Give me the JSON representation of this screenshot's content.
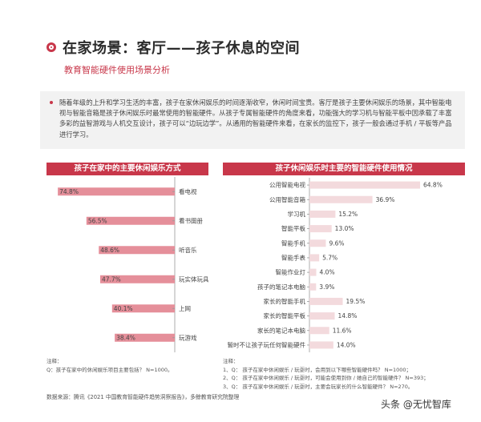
{
  "page": {
    "title": "在家场景：客厅——孩子休息的空间",
    "subtitle": "教育智能硬件使用场景分析",
    "intro": "随着年级的上升和学习生活的丰富，孩子在家休闲娱乐的时间逐渐收窄，休闲时间宝贵。客厅是孩子主要休闲娱乐的场景，其中智能电视与智能音箱是孩子休闲娱乐时最常使用的智能硬件。从孩子专属智能硬件的角度来看，功能强大的学习机与智能平板中因承载了丰富多彩的益智游戏与人机交互设计，孩子可以“边玩边学”。从通用的智能硬件来看，在家长的监控下，孩子一般会通过手机 / 平板等产品进行学习。",
    "source": "数据来源：腾讯《2021 中国教育智能硬件趋势洞察报告》，多鲸教育研究院整理",
    "watermark": "头条 @无忧智库",
    "accent_color": "#c8374a"
  },
  "left_chart": {
    "header": "孩子在家中的主要休闲娱乐方式",
    "note_title": "注释：",
    "note_lines": [
      "Q：孩子在家中的休闲娱乐项目主要包括？ N=1000。"
    ]
  },
  "right_chart": {
    "header": "孩子休闲娱乐时主要的智能硬件使用情况",
    "note_title": "注释：",
    "note_lines": [
      "1、Q：  孩子在家中休闲娱乐 / 玩耍时，会用到以下哪些智能硬件吗？ N=1000；",
      "2、Q：  孩子在家中休闲娱乐 / 玩耍时，可能会使用到你 / 她自己的智能硬件？ N=393；",
      "3、Q：  孩子在家中休闲娱乐 / 玩耍时，主要会玩家长的什么智能硬件？ N=270。"
    ]
  },
  "chart_data": [
    {
      "type": "bar",
      "orientation": "horizontal",
      "title": "孩子在家中的主要休闲娱乐方式",
      "categories": [
        "看电视",
        "看书图册",
        "听音乐",
        "玩实体玩具",
        "上网",
        "玩游戏"
      ],
      "values": [
        74.8,
        56.5,
        48.6,
        47.7,
        40.1,
        38.4
      ],
      "value_labels": [
        "74.8%",
        "56.5%",
        "48.6%",
        "47.7%",
        "40.1%",
        "38.4%"
      ],
      "xlim": [
        0,
        80
      ],
      "color": "#e58f9a"
    },
    {
      "type": "bar",
      "orientation": "horizontal",
      "title": "孩子休闲娱乐时主要的智能硬件使用情况",
      "categories": [
        "公用智能电视",
        "公用智能音箱",
        "学习机",
        "智能平板",
        "智能手机",
        "智能手表",
        "智能作业灯",
        "孩子的笔记本电脑",
        "家长的智能手机",
        "家长的智能平板",
        "家长的笔记本电脑",
        "暂时不让孩子玩任何智能硬件"
      ],
      "values": [
        64.8,
        36.9,
        15.2,
        13.0,
        9.6,
        5.7,
        4.0,
        3.9,
        19.5,
        14.8,
        11.6,
        14.0
      ],
      "value_labels": [
        "64.8%",
        "36.9%",
        "15.2%",
        "13.0%",
        "9.6%",
        "5.7%",
        "4.0%",
        "3.9%",
        "19.5%",
        "14.8%",
        "11.6%",
        "14.0%"
      ],
      "xlim": [
        0,
        70
      ],
      "color": "#f3dadd"
    }
  ]
}
